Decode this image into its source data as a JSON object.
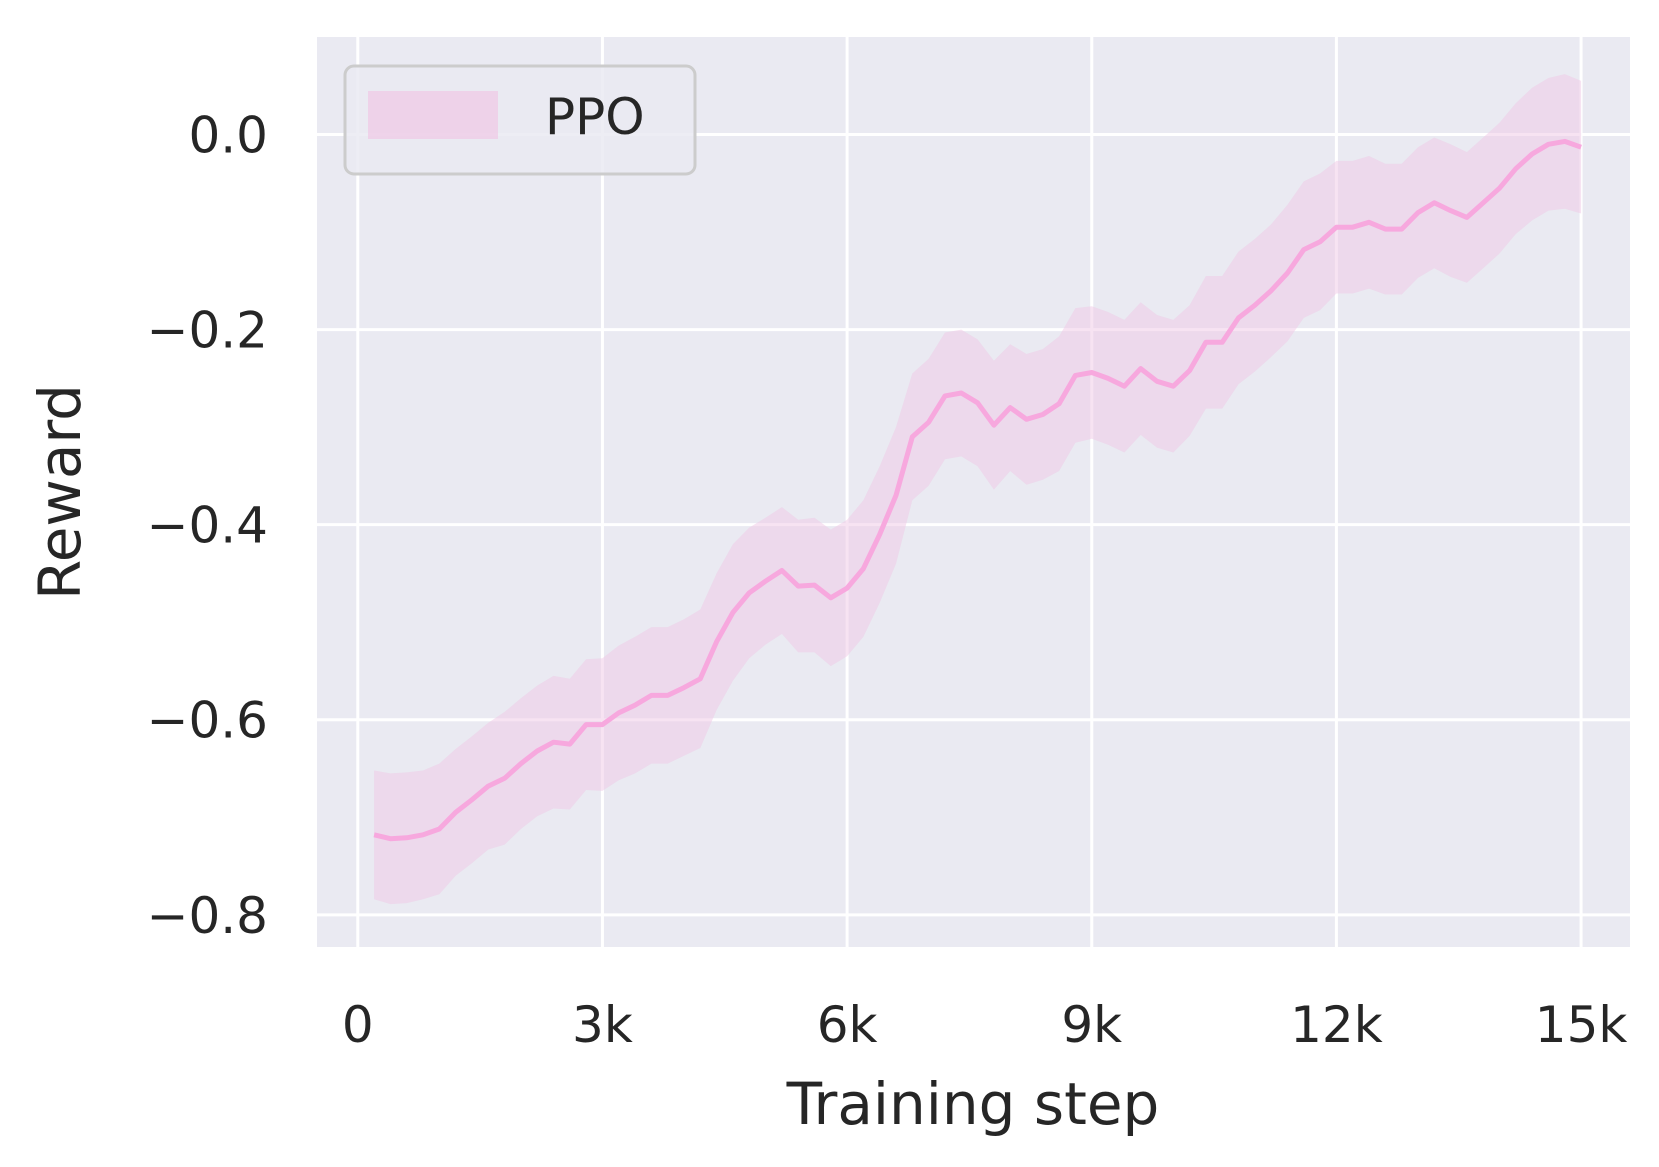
{
  "chart_data": {
    "type": "line",
    "xlabel": "Training step",
    "ylabel": "Reward",
    "xlim": [
      -500,
      15600
    ],
    "ylim": [
      -0.833,
      0.1
    ],
    "x_ticks": [
      0,
      3000,
      6000,
      9000,
      12000,
      15000
    ],
    "x_tick_labels": [
      "0",
      "3k",
      "6k",
      "9k",
      "12k",
      "15k"
    ],
    "y_ticks": [
      -0.8,
      -0.6,
      -0.4,
      -0.2,
      0.0
    ],
    "y_tick_labels": [
      "−0.8",
      "−0.6",
      "−0.4",
      "−0.2",
      "0.0"
    ],
    "grid": true,
    "legend_position": "upper-left",
    "colors": {
      "plot_background": "#eaeaf2",
      "grid": "#ffffff",
      "line": "#f7a8de",
      "band": "#f0c8e6",
      "legend_border": "#cccccc",
      "text": "#262626"
    },
    "series": [
      {
        "name": "PPO",
        "x": [
          200,
          400,
          600,
          800,
          1000,
          1200,
          1400,
          1600,
          1800,
          2000,
          2200,
          2400,
          2600,
          2800,
          3000,
          3200,
          3400,
          3600,
          3800,
          4000,
          4200,
          4400,
          4600,
          4800,
          5000,
          5200,
          5400,
          5600,
          5800,
          6000,
          6200,
          6400,
          6600,
          6800,
          7000,
          7200,
          7400,
          7600,
          7800,
          8000,
          8200,
          8400,
          8600,
          8800,
          9000,
          9200,
          9400,
          9600,
          9800,
          10000,
          10200,
          10400,
          10600,
          10800,
          11000,
          11200,
          11400,
          11600,
          11800,
          12000,
          12200,
          12400,
          12600,
          12800,
          13000,
          13200,
          13400,
          13600,
          13800,
          14000,
          14200,
          14400,
          14600,
          14800,
          15000
        ],
        "y": [
          -0.718,
          -0.722,
          -0.721,
          -0.718,
          -0.712,
          -0.695,
          -0.682,
          -0.668,
          -0.66,
          -0.645,
          -0.632,
          -0.623,
          -0.625,
          -0.605,
          -0.605,
          -0.593,
          -0.585,
          -0.575,
          -0.575,
          -0.567,
          -0.558,
          -0.52,
          -0.49,
          -0.47,
          -0.458,
          -0.447,
          -0.463,
          -0.462,
          -0.475,
          -0.465,
          -0.445,
          -0.41,
          -0.37,
          -0.31,
          -0.295,
          -0.268,
          -0.265,
          -0.275,
          -0.298,
          -0.28,
          -0.292,
          -0.287,
          -0.276,
          -0.247,
          -0.244,
          -0.25,
          -0.258,
          -0.24,
          -0.253,
          -0.258,
          -0.242,
          -0.213,
          -0.213,
          -0.188,
          -0.175,
          -0.16,
          -0.142,
          -0.118,
          -0.11,
          -0.095,
          -0.095,
          -0.09,
          -0.097,
          -0.097,
          -0.08,
          -0.07,
          -0.078,
          -0.085,
          -0.07,
          -0.055,
          -0.035,
          -0.02,
          -0.01,
          -0.007,
          -0.013
        ],
        "y_upper": [
          -0.652,
          -0.655,
          -0.654,
          -0.652,
          -0.645,
          -0.63,
          -0.617,
          -0.603,
          -0.592,
          -0.578,
          -0.565,
          -0.555,
          -0.558,
          -0.538,
          -0.537,
          -0.524,
          -0.515,
          -0.505,
          -0.505,
          -0.497,
          -0.487,
          -0.45,
          -0.42,
          -0.403,
          -0.393,
          -0.382,
          -0.395,
          -0.393,
          -0.405,
          -0.395,
          -0.375,
          -0.34,
          -0.3,
          -0.245,
          -0.23,
          -0.203,
          -0.2,
          -0.21,
          -0.232,
          -0.215,
          -0.225,
          -0.22,
          -0.207,
          -0.178,
          -0.176,
          -0.182,
          -0.19,
          -0.172,
          -0.185,
          -0.19,
          -0.175,
          -0.145,
          -0.145,
          -0.12,
          -0.107,
          -0.092,
          -0.072,
          -0.048,
          -0.04,
          -0.027,
          -0.027,
          -0.022,
          -0.03,
          -0.03,
          -0.013,
          -0.003,
          -0.01,
          -0.018,
          -0.003,
          0.012,
          0.032,
          0.048,
          0.058,
          0.062,
          0.055
        ],
        "y_lower": [
          -0.784,
          -0.789,
          -0.788,
          -0.784,
          -0.779,
          -0.76,
          -0.747,
          -0.733,
          -0.728,
          -0.712,
          -0.699,
          -0.691,
          -0.692,
          -0.672,
          -0.673,
          -0.662,
          -0.655,
          -0.645,
          -0.645,
          -0.637,
          -0.629,
          -0.59,
          -0.56,
          -0.537,
          -0.523,
          -0.512,
          -0.531,
          -0.531,
          -0.545,
          -0.535,
          -0.515,
          -0.48,
          -0.44,
          -0.375,
          -0.36,
          -0.333,
          -0.33,
          -0.34,
          -0.364,
          -0.345,
          -0.359,
          -0.354,
          -0.345,
          -0.316,
          -0.312,
          -0.318,
          -0.326,
          -0.308,
          -0.321,
          -0.326,
          -0.309,
          -0.281,
          -0.281,
          -0.256,
          -0.243,
          -0.228,
          -0.212,
          -0.188,
          -0.18,
          -0.163,
          -0.163,
          -0.158,
          -0.164,
          -0.164,
          -0.147,
          -0.137,
          -0.146,
          -0.152,
          -0.137,
          -0.122,
          -0.102,
          -0.088,
          -0.078,
          -0.076,
          -0.081
        ]
      }
    ]
  }
}
